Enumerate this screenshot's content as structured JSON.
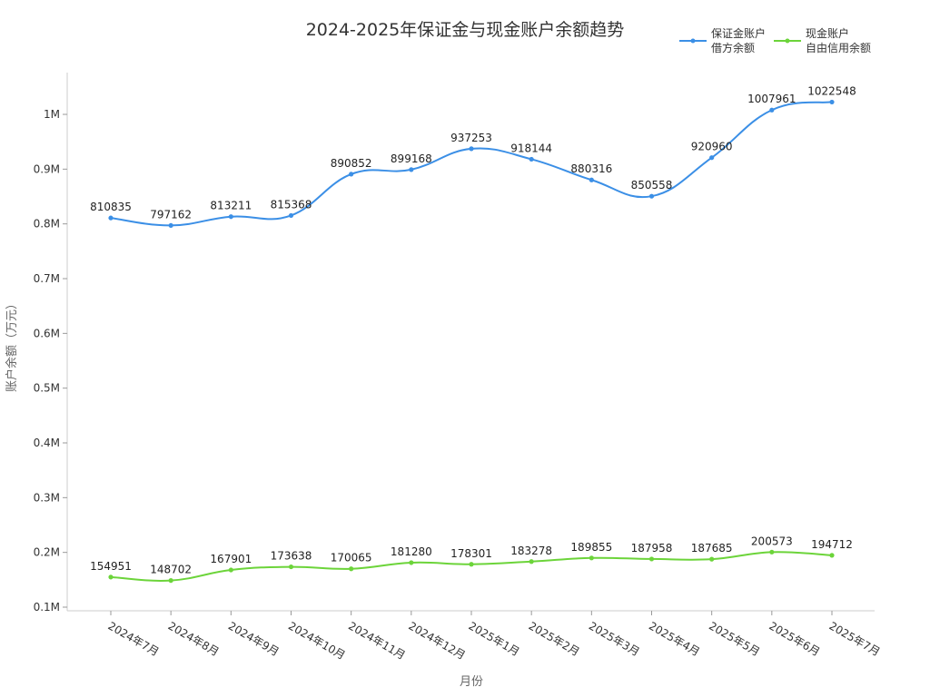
{
  "chart_data": {
    "type": "line",
    "title": "2024-2025年保证金与现金账户余额趋势",
    "xlabel": "月份",
    "ylabel": "账户余额（万元）",
    "categories": [
      "2024年7月",
      "2024年8月",
      "2024年9月",
      "2024年10月",
      "2024年11月",
      "2024年12月",
      "2025年1月",
      "2025年2月",
      "2025年3月",
      "2025年4月",
      "2025年5月",
      "2025年6月",
      "2025年7月"
    ],
    "yticks": [
      "0.1M",
      "0.2M",
      "0.3M",
      "0.4M",
      "0.5M",
      "0.6M",
      "0.7M",
      "0.8M",
      "0.9M",
      "1M"
    ],
    "ylim": [
      94000,
      1100000
    ],
    "grid": false,
    "legend_position": "top-right",
    "series": [
      {
        "name": "保证金账户\n借方余额",
        "name_lines": [
          "保证金账户",
          "借方余额"
        ],
        "color": "#3b8fe6",
        "values": [
          810835,
          797162,
          813211,
          815368,
          890852,
          899168,
          937253,
          918144,
          880316,
          850558,
          920960,
          1007961,
          1022548
        ]
      },
      {
        "name": "现金账户\n自由信用余额",
        "name_lines": [
          "现金账户",
          "自由信用余额"
        ],
        "color": "#6cd43a",
        "values": [
          154951,
          148702,
          167901,
          173638,
          170065,
          181280,
          178301,
          183278,
          189855,
          187958,
          187685,
          200573,
          194712
        ]
      }
    ]
  }
}
